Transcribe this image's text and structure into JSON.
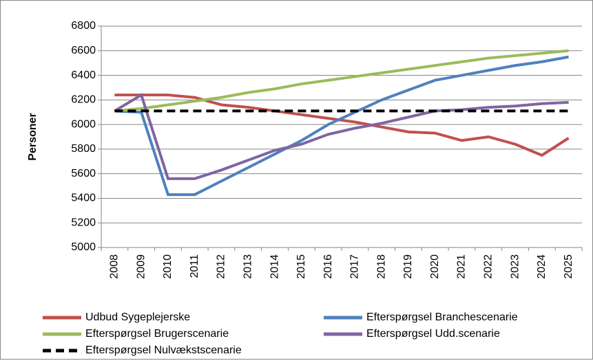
{
  "chart_data": {
    "type": "line",
    "y_label": "Personer",
    "categories": [
      "2008",
      "2009",
      "2010",
      "2011",
      "2012",
      "2013",
      "2014",
      "2015",
      "2016",
      "2017",
      "2018",
      "2019",
      "2020",
      "2021",
      "2022",
      "2023",
      "2024",
      "2025"
    ],
    "ylim": [
      5000,
      6800
    ],
    "yticks": [
      5000,
      5200,
      5400,
      5600,
      5800,
      6000,
      6200,
      6400,
      6600,
      6800
    ],
    "grid": true,
    "legend": "bottom",
    "series": [
      {
        "name": "Udbud Sygeplejerske",
        "color": "#c0504d",
        "dashed": false,
        "values": [
          6240,
          6240,
          6240,
          6220,
          6160,
          6140,
          6110,
          6080,
          6050,
          6020,
          5980,
          5940,
          5930,
          5870,
          5900,
          5840,
          5750,
          5890
        ]
      },
      {
        "name": "Efterspørgsel Branchescenarie",
        "color": "#4f81bd",
        "dashed": false,
        "values": [
          6110,
          6100,
          5430,
          5430,
          5540,
          5650,
          5760,
          5870,
          6000,
          6100,
          6200,
          6280,
          6360,
          6400,
          6440,
          6480,
          6510,
          6550
        ]
      },
      {
        "name": "Efterspørgsel Brugerscenarie",
        "color": "#9bbb59",
        "dashed": false,
        "values": [
          6110,
          6130,
          6160,
          6190,
          6220,
          6260,
          6290,
          6330,
          6360,
          6390,
          6420,
          6450,
          6480,
          6510,
          6540,
          6560,
          6580,
          6600
        ]
      },
      {
        "name": "Efterspørgsel Udd.scenarie",
        "color": "#8064a2",
        "dashed": false,
        "values": [
          6110,
          6240,
          5560,
          5560,
          5630,
          5710,
          5790,
          5840,
          5920,
          5970,
          6010,
          6060,
          6110,
          6120,
          6140,
          6150,
          6170,
          6180
        ]
      },
      {
        "name": "Efterspørgsel Nulvækstscenarie",
        "color": "#000000",
        "dashed": true,
        "values": [
          6110,
          6110,
          6110,
          6110,
          6110,
          6110,
          6110,
          6110,
          6110,
          6110,
          6110,
          6110,
          6110,
          6110,
          6110,
          6110,
          6110,
          6110
        ]
      }
    ]
  }
}
